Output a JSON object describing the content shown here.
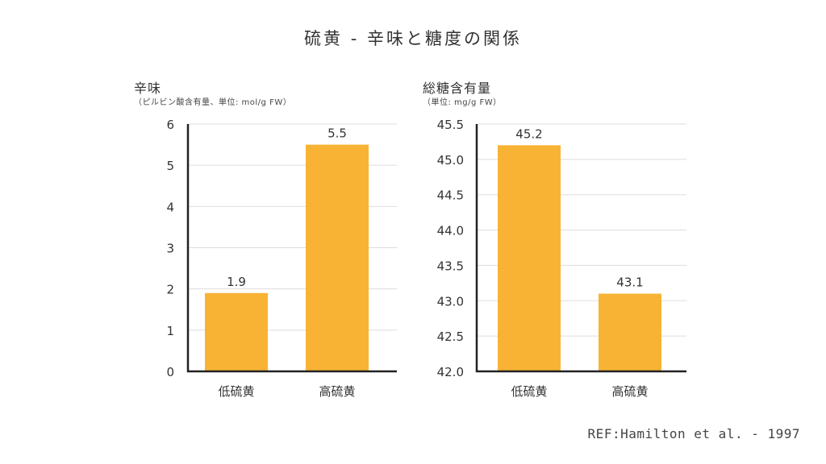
{
  "title": "硫黄 - 辛味と糖度の関係",
  "reference": "REF:Hamilton et al. - 1997",
  "colors": {
    "bar": "#F8B334",
    "axis": "#222222",
    "grid": "#DDDDDD"
  },
  "chart_data": [
    {
      "type": "bar",
      "title": "辛味",
      "subtitle": "（ピルビン酸含有量、単位: mol/g FW）",
      "categories": [
        "低硫黄",
        "高硫黄"
      ],
      "values": [
        1.9,
        5.5
      ],
      "value_labels": [
        "1.9",
        "5.5"
      ],
      "ylim": [
        0,
        6
      ],
      "yticks": [
        0,
        1,
        2,
        3,
        4,
        5,
        6
      ],
      "ytick_labels": [
        "0",
        "1",
        "2",
        "3",
        "4",
        "5",
        "6"
      ],
      "grid": true
    },
    {
      "type": "bar",
      "title": "総糖含有量",
      "subtitle": "（単位: mg/g FW）",
      "categories": [
        "低硫黄",
        "高硫黄"
      ],
      "values": [
        45.2,
        43.1
      ],
      "value_labels": [
        "45.2",
        "43.1"
      ],
      "ylim": [
        42.0,
        45.5
      ],
      "yticks": [
        42.0,
        42.5,
        43.0,
        43.5,
        44.0,
        44.5,
        45.0,
        45.5
      ],
      "ytick_labels": [
        "42.0",
        "42.5",
        "43.0",
        "43.5",
        "44.0",
        "44.5",
        "45.0",
        "45.5"
      ],
      "grid": true
    }
  ]
}
